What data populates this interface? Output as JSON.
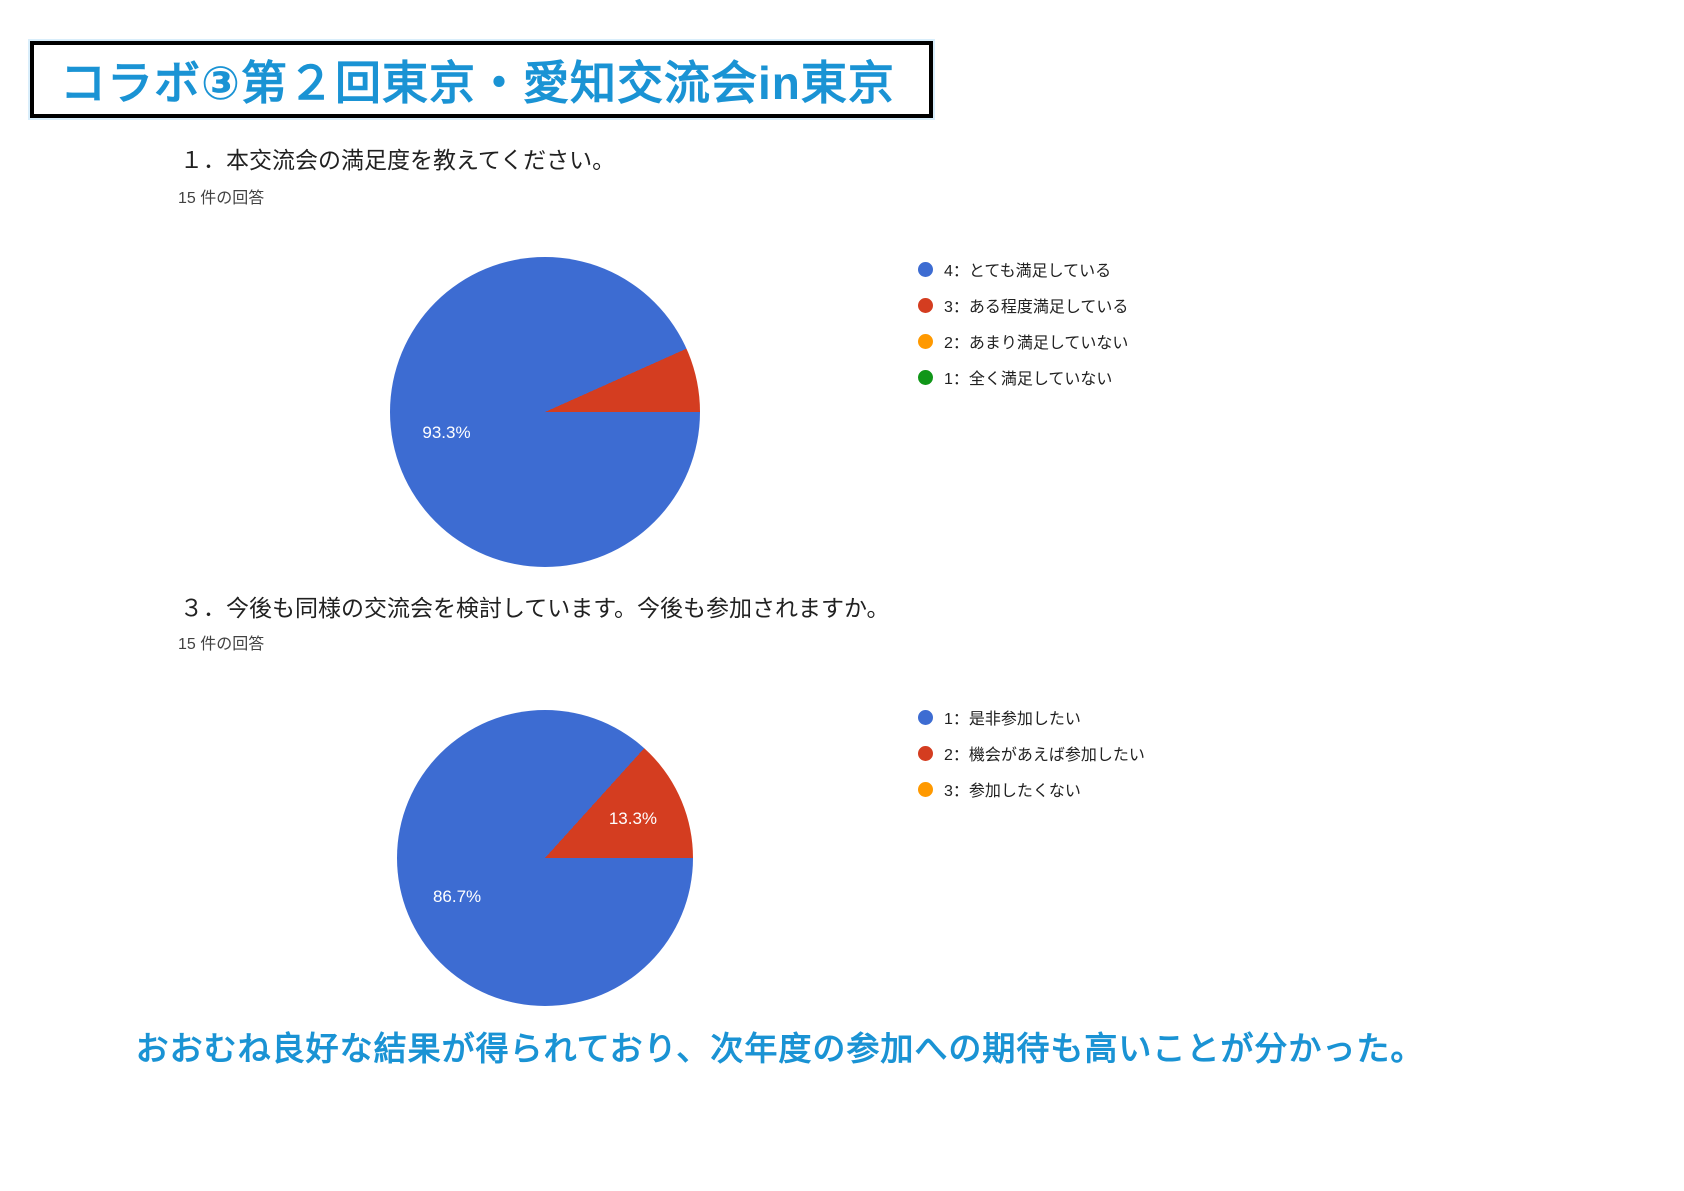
{
  "banner": {
    "title": "コラボ③第２回東京・愛知交流会in東京"
  },
  "conclusion": "おおむね良好な結果が得られており、次年度の参加への期待も高いことが分かった。",
  "colors": {
    "accent-blue": "#1a93d4",
    "banner-border": "#000000",
    "text-dark": "#212121",
    "text-muted": "#424242",
    "pie-blue": "#3d6cd2",
    "pie-red": "#d43d20",
    "pie-orange": "#ff9900",
    "pie-green": "#109618"
  },
  "chart_data": [
    {
      "type": "pie",
      "title": "１．本交流会の満足度を教えてください。",
      "responses_label": "15 件の回答",
      "total_responses": 15,
      "unit": "%",
      "labels": [
        "4：とても満足している",
        "3：ある程度満足している",
        "2：あまり満足していない",
        "1：全く満足していない"
      ],
      "values": [
        93.3,
        6.7,
        0,
        0
      ],
      "colors": [
        "#3d6cd2",
        "#d43d20",
        "#ff9900",
        "#109618"
      ],
      "data_labels": [
        "93.3%",
        "",
        "",
        ""
      ],
      "legend_position": "right",
      "start_angle": "3-oclock-clockwise"
    },
    {
      "type": "pie",
      "title": "３．今後も同様の交流会を検討しています。今後も参加されますか。",
      "responses_label": "15 件の回答",
      "total_responses": 15,
      "unit": "%",
      "labels": [
        "1：是非参加したい",
        "2：機会があえば参加したい",
        "3：参加したくない"
      ],
      "values": [
        86.7,
        13.3,
        0
      ],
      "colors": [
        "#3d6cd2",
        "#d43d20",
        "#ff9900"
      ],
      "data_labels": [
        "86.7%",
        "13.3%",
        ""
      ],
      "legend_position": "right",
      "start_angle": "3-oclock-clockwise"
    }
  ]
}
